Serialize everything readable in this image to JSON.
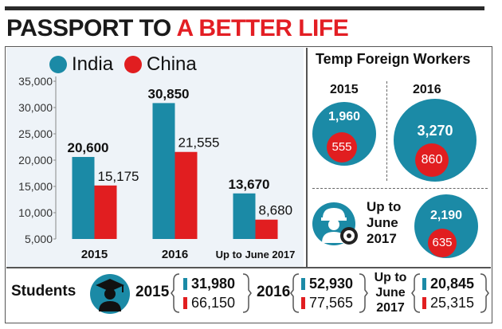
{
  "title": {
    "part1": "PASSPORT TO",
    "part2": "A BETTER LIFE"
  },
  "legend": [
    {
      "name": "India",
      "color": "#1b8aa6"
    },
    {
      "name": "China",
      "color": "#e11e20"
    }
  ],
  "chart_data": {
    "type": "bar",
    "categories": [
      "2015",
      "2016",
      "Up to June 2017"
    ],
    "series": [
      {
        "name": "India",
        "values": [
          20600,
          30850,
          13670
        ],
        "labels": [
          "20,600",
          "30,850",
          "13,670"
        ],
        "color": "#1b8aa6"
      },
      {
        "name": "China",
        "values": [
          15175,
          21555,
          8680
        ],
        "labels": [
          "15,175",
          "21,555",
          "8,680"
        ],
        "color": "#e11e20"
      }
    ],
    "ylim": [
      5000,
      35000
    ],
    "yticks": [
      "5,000",
      "10,000",
      "15,000",
      "20,000",
      "25,000",
      "30,000",
      "35,000"
    ],
    "grid": false,
    "legend_position": "top-left"
  },
  "temp_foreign_workers": {
    "title": "Temp Foreign Workers",
    "year_2015": {
      "year": "2015",
      "india": "1,960",
      "china": "555"
    },
    "year_2016": {
      "year": "2016",
      "india": "3,270",
      "china": "860"
    },
    "year_2017": {
      "line1": "Up to",
      "line2": "June",
      "line3": "2017",
      "india": "2,190",
      "china": "635"
    }
  },
  "students": {
    "label": "Students",
    "year_2015": {
      "year": "2015",
      "india": "31,980",
      "china": "66,150"
    },
    "year_2016": {
      "year": "2016",
      "india": "52,930",
      "china": "77,565"
    },
    "year_2017": {
      "line1": "Up to",
      "line2": "June",
      "line3": "2017",
      "india": "20,845",
      "china": "25,315"
    }
  },
  "icons": [
    "worker-icon",
    "graduate-icon"
  ]
}
